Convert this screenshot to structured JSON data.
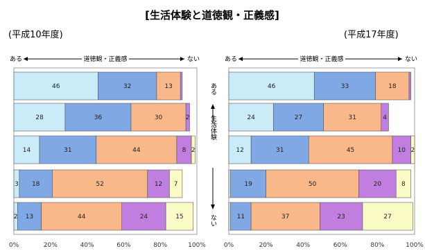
{
  "chart_data": {
    "type": "bar",
    "stacked": true,
    "orientation": "horizontal",
    "title": "[生活体験と道徳観・正義感]",
    "colors": [
      "#c9ecf8",
      "#7fa8e4",
      "#f8b88a",
      "#c07fe0",
      "#fbfbc7"
    ],
    "xlim": [
      0,
      100
    ],
    "x_ticks": [
      "0%",
      "20%",
      "40%",
      "60%",
      "80%",
      "100%"
    ],
    "left_top_label": "ある",
    "right_top_label": "ない",
    "axis_caption": "道徳観・正義感",
    "middle_axis": {
      "top": "ある",
      "caption": "生活体験",
      "bottom": "ない"
    },
    "panels": [
      {
        "period": "(平成10年度)",
        "rows": [
          [
            46,
            32,
            13,
            1,
            0
          ],
          [
            28,
            36,
            30,
            2,
            0
          ],
          [
            14,
            31,
            44,
            8,
            2
          ],
          [
            3,
            18,
            52,
            12,
            7
          ],
          [
            2,
            13,
            44,
            24,
            15
          ]
        ]
      },
      {
        "period": "(平成17年度)",
        "rows": [
          [
            46,
            33,
            18,
            1,
            0
          ],
          [
            24,
            27,
            31,
            4,
            0
          ],
          [
            12,
            31,
            45,
            10,
            2
          ],
          [
            1,
            19,
            50,
            20,
            8
          ],
          [
            1,
            11,
            37,
            23,
            27
          ]
        ]
      }
    ]
  }
}
